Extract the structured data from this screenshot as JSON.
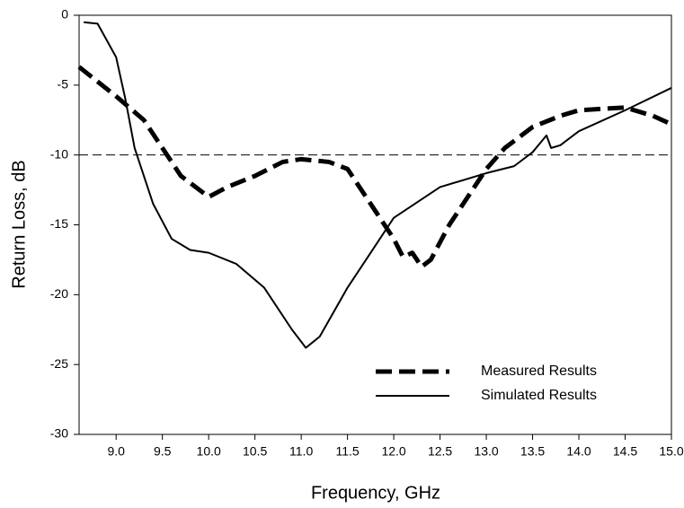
{
  "chart_data": {
    "type": "line",
    "xlabel": "Frequency, GHz",
    "ylabel": "Return Loss, dB",
    "xlim": [
      8.6,
      15.0
    ],
    "ylim": [
      -30,
      0
    ],
    "xticks": [
      {
        "value": 9.0,
        "label": "9.0"
      },
      {
        "value": 9.5,
        "label": "9.5"
      },
      {
        "value": 10.0,
        "label": "10.0"
      },
      {
        "value": 10.5,
        "label": "10.5"
      },
      {
        "value": 11.0,
        "label": "11.0"
      },
      {
        "value": 11.5,
        "label": "11.5"
      },
      {
        "value": 12.0,
        "label": "12.0"
      },
      {
        "value": 12.5,
        "label": "12.5"
      },
      {
        "value": 13.0,
        "label": "13.0"
      },
      {
        "value": 13.5,
        "label": "13.5"
      },
      {
        "value": 14.0,
        "label": "14.0"
      },
      {
        "value": 14.5,
        "label": "14.5"
      },
      {
        "value": 15.0,
        "label": "15.0"
      }
    ],
    "yticks": [
      0,
      -5,
      -10,
      -15,
      -20,
      -25,
      -30
    ],
    "reference_line": -10,
    "legend": "lower right",
    "series": [
      {
        "name": "Measured Results",
        "color": "#000000",
        "style": "dashed",
        "x": [
          8.6,
          9.0,
          9.3,
          9.5,
          9.7,
          10.0,
          10.2,
          10.5,
          10.8,
          11.0,
          11.3,
          11.5,
          11.8,
          12.0,
          12.1,
          12.2,
          12.3,
          12.4,
          12.6,
          12.8,
          13.0,
          13.2,
          13.5,
          13.8,
          14.0,
          14.5,
          14.8,
          15.0
        ],
        "values": [
          -3.7,
          -5.8,
          -7.5,
          -9.5,
          -11.5,
          -13,
          -12.3,
          -11.5,
          -10.5,
          -10.3,
          -10.5,
          -11,
          -14,
          -16,
          -17.3,
          -17,
          -18,
          -17.5,
          -15,
          -13,
          -11,
          -9.5,
          -8,
          -7.2,
          -6.8,
          -6.6,
          -7.2,
          -7.8
        ]
      },
      {
        "name": "Simulated Results",
        "color": "#000000",
        "style": "solid",
        "x": [
          8.65,
          8.8,
          9.0,
          9.1,
          9.2,
          9.4,
          9.6,
          9.8,
          10.0,
          10.3,
          10.6,
          10.9,
          11.05,
          11.2,
          11.5,
          12.0,
          12.5,
          13.0,
          13.3,
          13.5,
          13.6,
          13.65,
          13.7,
          13.8,
          14.0,
          14.5,
          15.0
        ],
        "values": [
          -0.5,
          -0.6,
          -3,
          -6,
          -9.5,
          -13.5,
          -16,
          -16.8,
          -17,
          -17.8,
          -19.5,
          -22.5,
          -23.8,
          -23,
          -19.5,
          -14.5,
          -12.3,
          -11.3,
          -10.8,
          -9.8,
          -9,
          -8.6,
          -9.5,
          -9.3,
          -8.3,
          -6.8,
          -5.2
        ]
      }
    ]
  }
}
